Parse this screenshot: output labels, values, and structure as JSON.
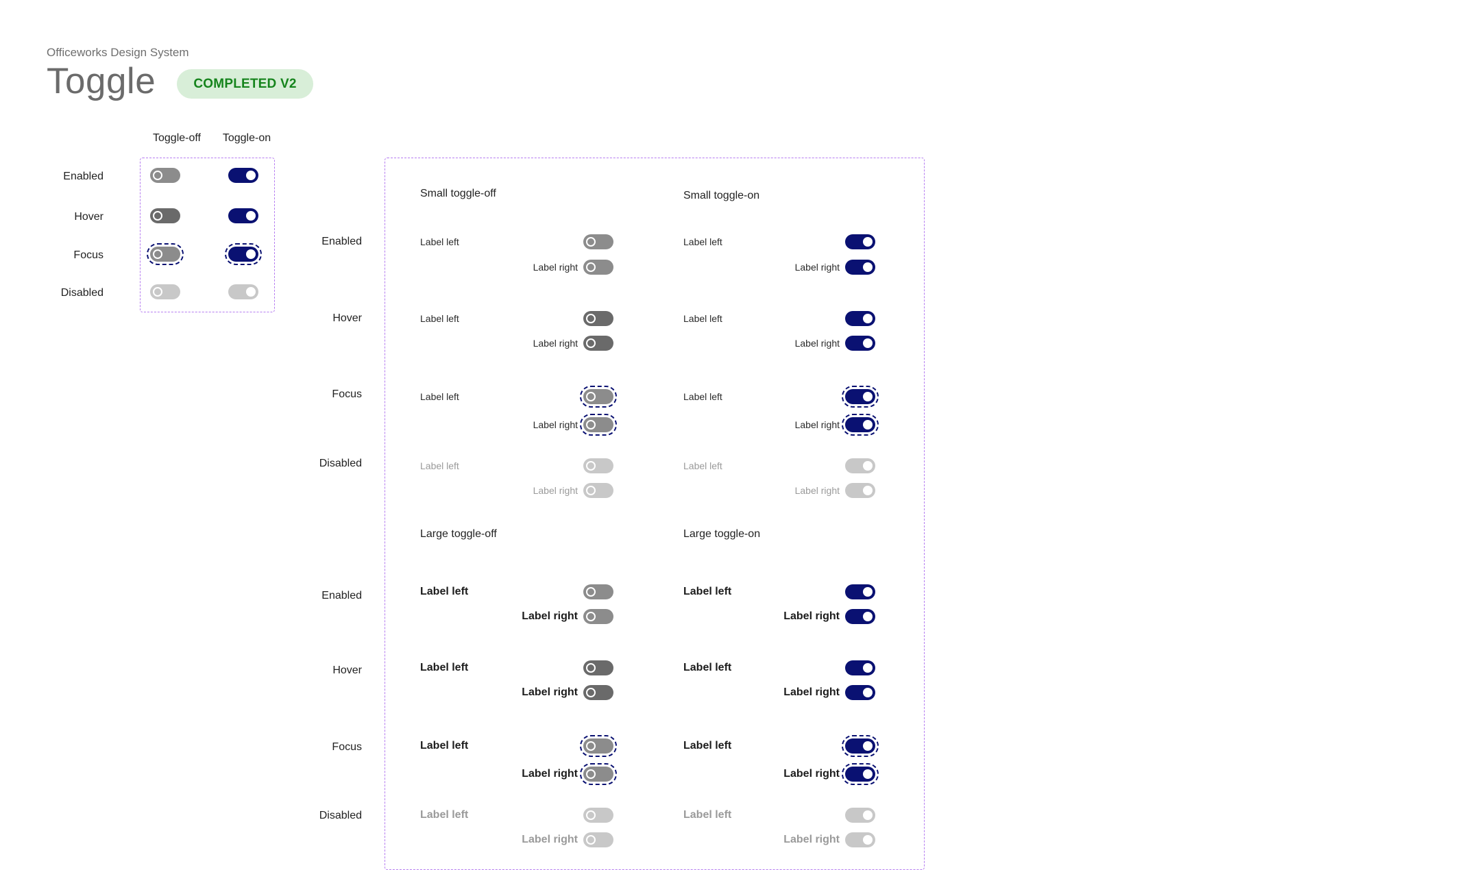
{
  "header": {
    "subtitle": "Officeworks Design System",
    "title": "Toggle",
    "badge": "COMPLETED V2"
  },
  "basic_grid": {
    "columns": [
      "Toggle-off",
      "Toggle-on"
    ],
    "rows": [
      "Enabled",
      "Hover",
      "Focus",
      "Disabled"
    ]
  },
  "main_rows": {
    "small": [
      "Enabled",
      "Hover",
      "Focus",
      "Disabled"
    ],
    "large": [
      "Enabled",
      "Hover",
      "Focus",
      "Disabled"
    ]
  },
  "sections": {
    "small_off": "Small toggle-off",
    "small_on": "Small toggle-on",
    "large_off": "Large toggle-off",
    "large_on": "Large toggle-on"
  },
  "labels": {
    "left": "Label left",
    "right": "Label right"
  },
  "colors": {
    "on": "#0a1172",
    "off": "#8c8c8c",
    "off_hover": "#6a6a6a",
    "disabled": "#c8c8c8",
    "frame": "#b57cf0",
    "badge_bg": "#d8eed8",
    "badge_text": "#15841c"
  },
  "icons": {
    "toggle": "pill-switch"
  }
}
